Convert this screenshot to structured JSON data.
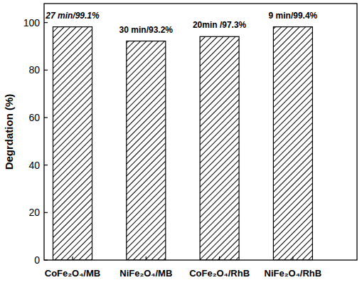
{
  "chart_data": {
    "type": "bar",
    "y_label": "Degrdation (%)",
    "categories": [
      "CoFe₂O₄/MB",
      "NiFe₂O₄/MB",
      "CoFe₂O₄/RhB",
      "NiFe₂O₄/RhB"
    ],
    "values": [
      98.2,
      92.2,
      94.1,
      98.2
    ],
    "annotations": [
      "27 min/99.1%",
      "30 min/93.2%",
      "20min /97.3%",
      "9 min/99.4%"
    ],
    "color": "#000000",
    "ylim": [
      0,
      108
    ],
    "yticks": [
      0,
      20,
      40,
      60,
      80,
      100
    ],
    "grid": false
  }
}
